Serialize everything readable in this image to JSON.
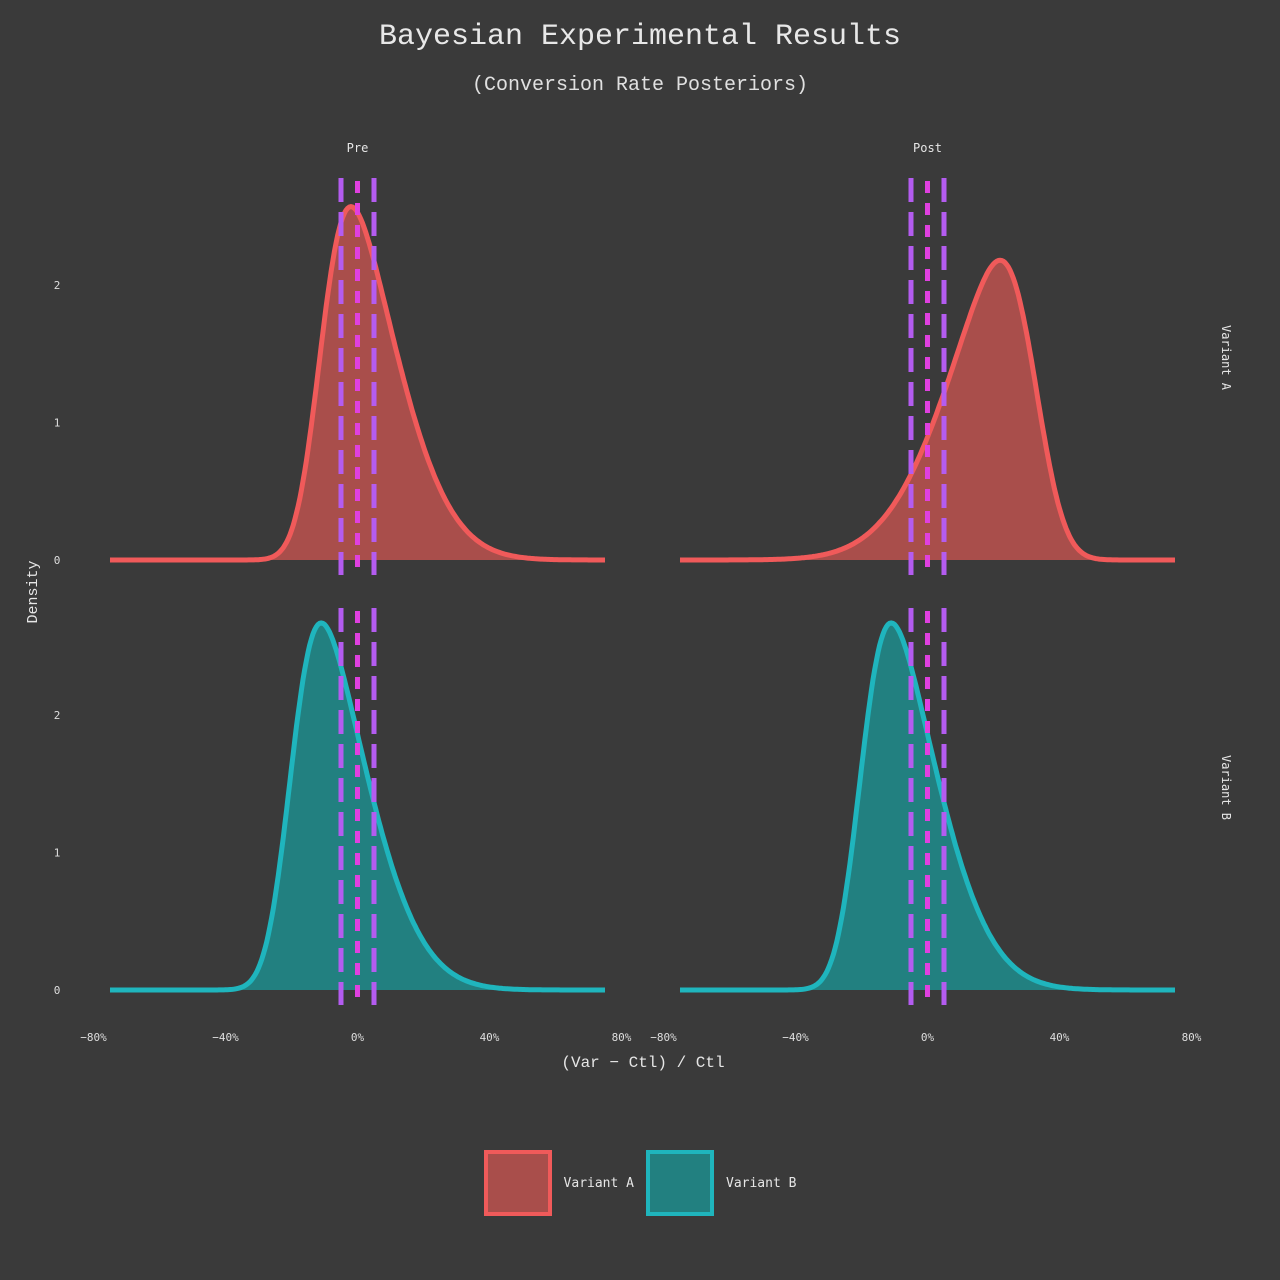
{
  "chart_data": {
    "type": "area",
    "title": "Bayesian Experimental Results",
    "subtitle": "(Conversion Rate Posteriors)",
    "xlabel": "(Var − Ctl) / Ctl",
    "ylabel": "Density",
    "xlim": [
      -0.75,
      0.75
    ],
    "ylim": [
      0,
      2.6
    ],
    "x_ticks": [
      -0.8,
      -0.4,
      0,
      0.4,
      0.8
    ],
    "x_tick_labels": [
      "−80%",
      "−40%",
      "0%",
      "40%",
      "80%"
    ],
    "y_ticks": [
      0,
      1,
      2
    ],
    "y_tick_labels": [
      "0",
      "1",
      "2"
    ],
    "columns": [
      "Pre",
      "Post"
    ],
    "rows": [
      "Variant A",
      "Variant B"
    ],
    "reference_lines": {
      "rope": [
        -0.05,
        0.05
      ],
      "zero": 0,
      "rope_color": "#b45cf0",
      "zero_color": "#e040e0",
      "style": "dashed"
    },
    "panels": [
      {
        "row": "Variant A",
        "col": "Pre",
        "distribution": "skew-normal",
        "mode": -0.02,
        "peak_density": 2.57,
        "skew": "right"
      },
      {
        "row": "Variant A",
        "col": "Post",
        "distribution": "skew-normal",
        "mode": 0.22,
        "peak_density": 2.18,
        "skew": "left"
      },
      {
        "row": "Variant B",
        "col": "Pre",
        "distribution": "skew-normal",
        "mode": -0.11,
        "peak_density": 2.67,
        "skew": "right"
      },
      {
        "row": "Variant B",
        "col": "Post",
        "distribution": "skew-normal",
        "mode": -0.11,
        "peak_density": 2.67,
        "skew": "right"
      }
    ],
    "series": [
      {
        "name": "Variant A",
        "line_color": "#f05a5a",
        "fill_color": "#a94e4b"
      },
      {
        "name": "Variant B",
        "line_color": "#1fb5bd",
        "fill_color": "#228080"
      }
    ],
    "legend_position": "bottom-center",
    "grid": false
  }
}
